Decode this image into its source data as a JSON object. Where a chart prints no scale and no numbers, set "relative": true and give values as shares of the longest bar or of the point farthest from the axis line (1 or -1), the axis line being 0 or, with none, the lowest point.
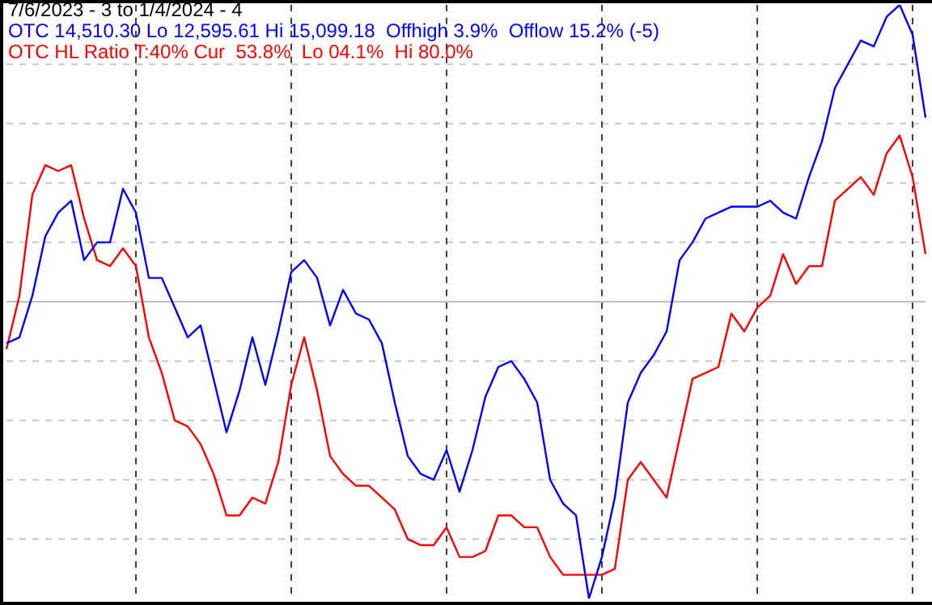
{
  "chart_data": {
    "type": "line",
    "title": "7/6/2023 - 3 to 1/4/2024 - 4",
    "relative": true,
    "grid": true,
    "categories": [
      null,
      null,
      null,
      null,
      null,
      null,
      null,
      null,
      null,
      null,
      null,
      null,
      null,
      null,
      null,
      null,
      null,
      null,
      null,
      null,
      null,
      null,
      null,
      null,
      null,
      null,
      null,
      null,
      null,
      null,
      null,
      null,
      null,
      null,
      null,
      null,
      null,
      null,
      null,
      null,
      null,
      null,
      null,
      null,
      null,
      null,
      null,
      null,
      null,
      null,
      null,
      null,
      null,
      null,
      null,
      null,
      null,
      null,
      null,
      null,
      null,
      null,
      null,
      null,
      null,
      null,
      null,
      null,
      null,
      null,
      null,
      null
    ],
    "series": [
      {
        "name": "OTC 14,510.30 Lo 12,595.61 Hi 15,099.18  Offhigh 3.9%  Offlow 15.2% (-5)",
        "color": "#0000ff",
        "values": [
          0.43,
          0.44,
          0.51,
          0.61,
          0.65,
          0.67,
          0.57,
          0.6,
          0.6,
          0.69,
          0.65,
          0.54,
          0.54,
          0.49,
          0.44,
          0.46,
          0.37,
          0.28,
          0.35,
          0.44,
          0.36,
          0.45,
          0.55,
          0.57,
          0.54,
          0.46,
          0.52,
          0.48,
          0.47,
          0.43,
          0.33,
          0.24,
          0.21,
          0.2,
          0.25,
          0.18,
          0.25,
          0.34,
          0.39,
          0.4,
          0.37,
          0.33,
          0.2,
          0.16,
          0.14,
          0,
          0.07,
          0.17,
          0.33,
          0.38,
          0.41,
          0.45,
          0.57,
          0.6,
          0.64,
          0.65,
          0.66,
          0.66,
          0.66,
          0.67,
          0.65,
          0.64,
          0.71,
          0.77,
          0.86,
          0.9,
          0.94,
          0.93,
          0.98,
          1,
          0.95,
          0.81
        ]
      },
      {
        "name": "OTC HL Ratio T:40% Cur  53.8%  Lo 04.1%  Hi 80.0%",
        "color": "#ff0000",
        "values": [
          0.42,
          0.51,
          0.68,
          0.73,
          0.72,
          0.73,
          0.64,
          0.57,
          0.56,
          0.59,
          0.56,
          0.44,
          0.38,
          0.3,
          0.29,
          0.26,
          0.21,
          0.14,
          0.14,
          0.17,
          0.16,
          0.23,
          0.36,
          0.44,
          0.35,
          0.24,
          0.21,
          0.19,
          0.19,
          0.17,
          0.15,
          0.1,
          0.09,
          0.09,
          0.12,
          0.07,
          0.07,
          0.08,
          0.14,
          0.14,
          0.12,
          0.12,
          0.07,
          0.04,
          0.04,
          0.04,
          0.04,
          0.05,
          0.2,
          0.23,
          0.2,
          0.17,
          0.27,
          0.37,
          0.38,
          0.39,
          0.48,
          0.45,
          0.49,
          0.51,
          0.58,
          0.53,
          0.56,
          0.56,
          0.67,
          0.69,
          0.71,
          0.68,
          0.75,
          0.78,
          0.71,
          0.58
        ]
      }
    ],
    "ref_lines": [
      {
        "axis": "y",
        "value": 0.5,
        "color": "#c0c0c0"
      }
    ]
  }
}
